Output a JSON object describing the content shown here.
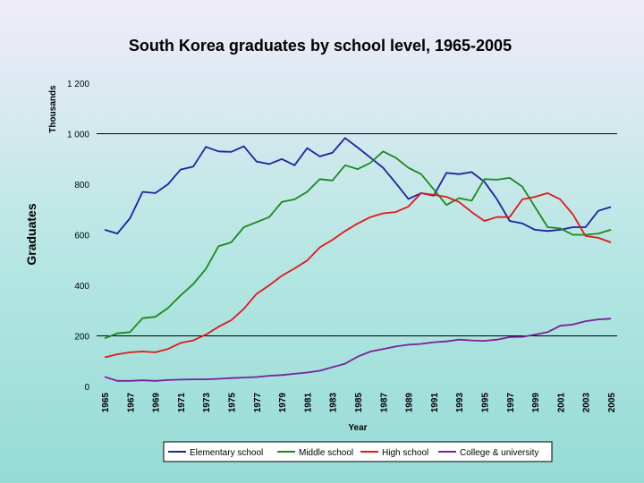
{
  "chart_data": {
    "type": "line",
    "title": "South Korea graduates by school level, 1965-2005",
    "xlabel": "Year",
    "ylabel": "Graduates",
    "unit_label": "Thousands",
    "xlim": [
      1965,
      2005
    ],
    "ylim": [
      0,
      1200
    ],
    "yticks": [
      0,
      200,
      400,
      600,
      800,
      1000,
      1200
    ],
    "ytick_labels": [
      "0",
      "200",
      "400",
      "600",
      "800",
      "1 000",
      "1 200"
    ],
    "xticks": [
      1965,
      1967,
      1969,
      1971,
      1973,
      1975,
      1977,
      1979,
      1981,
      1983,
      1985,
      1987,
      1989,
      1991,
      1993,
      1995,
      1997,
      1999,
      2001,
      2003,
      2005
    ],
    "grid": "horizontal at 200, 1000",
    "legend_position": "bottom",
    "x": [
      1965,
      1966,
      1967,
      1968,
      1969,
      1970,
      1971,
      1972,
      1973,
      1974,
      1975,
      1976,
      1977,
      1978,
      1979,
      1980,
      1981,
      1982,
      1983,
      1984,
      1985,
      1986,
      1987,
      1988,
      1989,
      1990,
      1991,
      1992,
      1993,
      1994,
      1995,
      1996,
      1997,
      1998,
      1999,
      2000,
      2001,
      2002,
      2003,
      2004,
      2005
    ],
    "series": [
      {
        "name": "Elementary school",
        "color": "#1f1fa3",
        "values": [
          620,
          605,
          665,
          770,
          765,
          800,
          858,
          870,
          948,
          930,
          928,
          950,
          890,
          880,
          900,
          875,
          943,
          910,
          925,
          983,
          945,
          905,
          865,
          805,
          742,
          765,
          755,
          845,
          840,
          848,
          810,
          740,
          655,
          645,
          620,
          615,
          620,
          630,
          630,
          695,
          710
        ]
      },
      {
        "name": "Middle school",
        "color": "#1a8a1a",
        "values": [
          190,
          210,
          215,
          270,
          275,
          310,
          360,
          405,
          465,
          555,
          570,
          630,
          650,
          670,
          730,
          740,
          770,
          820,
          815,
          875,
          860,
          885,
          930,
          905,
          865,
          840,
          780,
          718,
          745,
          735,
          820,
          818,
          825,
          790,
          710,
          630,
          625,
          600,
          600,
          605,
          620
        ]
      },
      {
        "name": "High school",
        "color": "#e01818",
        "values": [
          115,
          127,
          135,
          138,
          135,
          148,
          172,
          182,
          205,
          236,
          262,
          307,
          366,
          400,
          438,
          467,
          498,
          550,
          580,
          615,
          645,
          670,
          685,
          690,
          712,
          765,
          758,
          750,
          730,
          690,
          655,
          670,
          670,
          740,
          750,
          765,
          740,
          680,
          595,
          588,
          570
        ]
      },
      {
        "name": "College & university",
        "color": "#7a1f9c",
        "values": [
          38,
          22,
          22,
          24,
          22,
          25,
          27,
          28,
          28,
          30,
          33,
          35,
          37,
          42,
          45,
          50,
          55,
          62,
          76,
          90,
          118,
          138,
          148,
          158,
          165,
          168,
          175,
          178,
          185,
          182,
          180,
          185,
          195,
          196,
          205,
          215,
          240,
          245,
          258,
          265,
          268
        ]
      }
    ]
  }
}
